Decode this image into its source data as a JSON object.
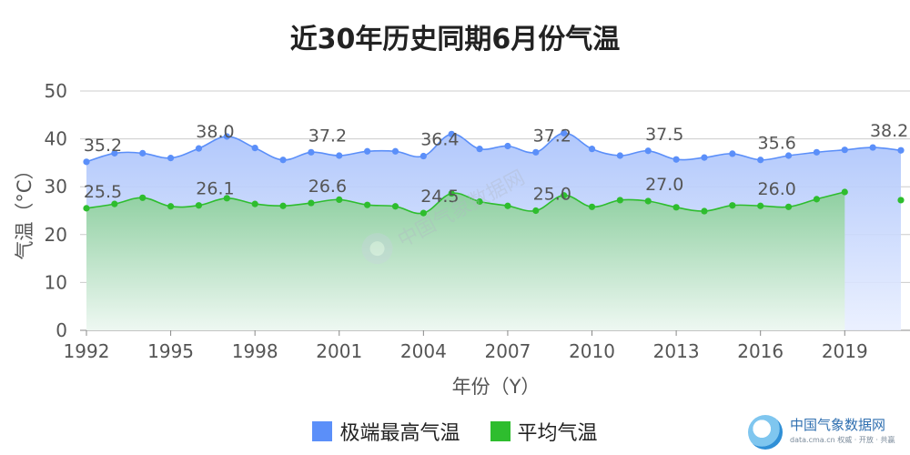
{
  "chart_data": {
    "type": "line",
    "title": "近30年历史同期6月份气温",
    "xlabel": "年份（Y）",
    "ylabel": "气温（°C）",
    "ylim": [
      0,
      50
    ],
    "yticks": [
      0,
      10,
      20,
      30,
      40,
      50
    ],
    "xticks": [
      "1992",
      "1995",
      "1998",
      "2001",
      "2004",
      "2007",
      "2010",
      "2013",
      "2016",
      "2019"
    ],
    "x": [
      1992,
      1993,
      1994,
      1995,
      1996,
      1997,
      1998,
      1999,
      2000,
      2001,
      2002,
      2003,
      2004,
      2005,
      2006,
      2007,
      2008,
      2009,
      2010,
      2011,
      2012,
      2013,
      2014,
      2015,
      2016,
      2017,
      2018,
      2019,
      2020,
      2021
    ],
    "grid": true,
    "legend_position": "bottom",
    "series": [
      {
        "name": "极端最高气温",
        "color": "#5b8ff9",
        "values": [
          35.2,
          37.0,
          37.0,
          36.0,
          38.0,
          40.5,
          38.1,
          35.6,
          37.2,
          36.5,
          37.4,
          37.4,
          36.4,
          41.0,
          37.9,
          38.5,
          37.2,
          41.2,
          37.9,
          36.5,
          37.5,
          35.7,
          36.1,
          36.9,
          35.6,
          36.5,
          37.2,
          37.7,
          38.2,
          37.6
        ],
        "labels": [
          {
            "x": 1992,
            "text": "35.2"
          },
          {
            "x": 1996,
            "text": "38.0"
          },
          {
            "x": 2000,
            "text": "37.2"
          },
          {
            "x": 2004,
            "text": "36.4"
          },
          {
            "x": 2008,
            "text": "37.2"
          },
          {
            "x": 2012,
            "text": "37.5"
          },
          {
            "x": 2016,
            "text": "35.6"
          },
          {
            "x": 2020,
            "text": "38.2"
          }
        ]
      },
      {
        "name": "平均气温",
        "color": "#2ebd2e",
        "values": [
          25.5,
          26.4,
          27.7,
          25.9,
          26.1,
          27.6,
          26.4,
          26.0,
          26.6,
          27.3,
          26.2,
          25.9,
          24.5,
          28.6,
          26.9,
          26.0,
          25.0,
          28.2,
          25.8,
          27.2,
          27.0,
          25.7,
          24.9,
          26.1,
          26.0,
          25.8,
          27.4,
          28.9,
          null,
          27.2
        ],
        "labels": [
          {
            "x": 1992,
            "text": "25.5"
          },
          {
            "x": 1996,
            "text": "26.1"
          },
          {
            "x": 2000,
            "text": "26.6"
          },
          {
            "x": 2004,
            "text": "24.5"
          },
          {
            "x": 2008,
            "text": "25.0"
          },
          {
            "x": 2012,
            "text": "27.0"
          },
          {
            "x": 2016,
            "text": "26.0"
          }
        ]
      }
    ]
  },
  "watermark": {
    "text": "中国气象数据网"
  },
  "brand": {
    "name": "中国气象数据网",
    "sub": "data.cma.cn  权威 · 开放 · 共赢"
  }
}
